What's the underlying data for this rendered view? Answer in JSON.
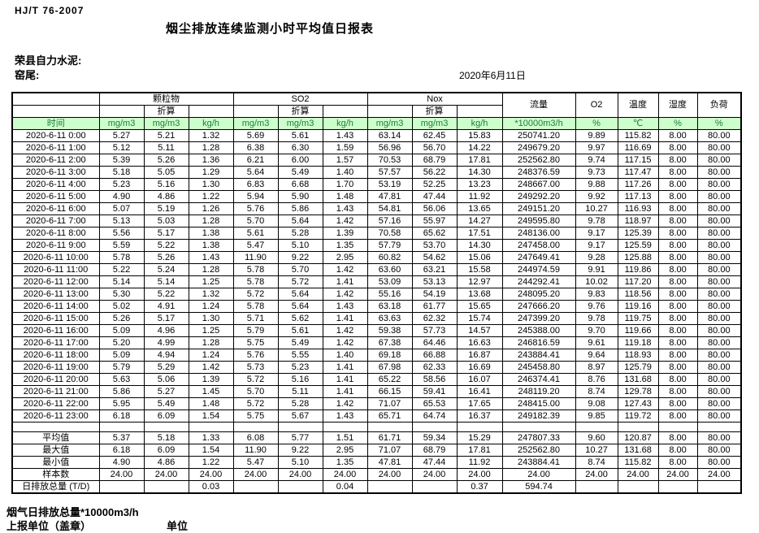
{
  "header": {
    "standard": "HJ/T  76-2007",
    "title": "烟尘排放连续监测小时平均值日报表",
    "company": "荣县自力水泥:",
    "station": "窑尾:",
    "date": "2020年6月11日"
  },
  "colors": {
    "header_bg": "#ccffcc",
    "header_fg": "#227a3c",
    "border": "#000000",
    "text": "#000000"
  },
  "table": {
    "time_label": "时间",
    "groups": [
      "颗粒物",
      "SO2",
      "Nox"
    ],
    "conv_label": "折算",
    "flow_label": "流量",
    "o2_label": "O2",
    "temp_label": "温度",
    "humidity_label": "湿度",
    "load_label": "负荷",
    "units": [
      "时间",
      "mg/m3",
      "mg/m3",
      "kg/h",
      "mg/m3",
      "mg/m3",
      "kg/h",
      "mg/m3",
      "mg/m3",
      "kg/h",
      "*10000m3/h",
      "%",
      "℃",
      "%",
      "%"
    ],
    "rows": [
      {
        "time": "2020-6-11  0:00",
        "values": [
          "5.27",
          "5.21",
          "1.32",
          "5.69",
          "5.61",
          "1.43",
          "63.14",
          "62.45",
          "15.83",
          "250741.20",
          "9.89",
          "115.82",
          "8.00",
          "80.00"
        ]
      },
      {
        "time": "2020-6-11  1:00",
        "values": [
          "5.12",
          "5.11",
          "1.28",
          "6.38",
          "6.30",
          "1.59",
          "56.96",
          "56.70",
          "14.22",
          "249679.20",
          "9.97",
          "116.69",
          "8.00",
          "80.00"
        ]
      },
      {
        "time": "2020-6-11  2:00",
        "values": [
          "5.39",
          "5.26",
          "1.36",
          "6.21",
          "6.00",
          "1.57",
          "70.53",
          "68.79",
          "17.81",
          "252562.80",
          "9.74",
          "117.15",
          "8.00",
          "80.00"
        ]
      },
      {
        "time": "2020-6-11  3:00",
        "values": [
          "5.18",
          "5.05",
          "1.29",
          "5.64",
          "5.49",
          "1.40",
          "57.57",
          "56.22",
          "14.30",
          "248376.59",
          "9.73",
          "117.47",
          "8.00",
          "80.00"
        ]
      },
      {
        "time": "2020-6-11  4:00",
        "values": [
          "5.23",
          "5.16",
          "1.30",
          "6.83",
          "6.68",
          "1.70",
          "53.19",
          "52.25",
          "13.23",
          "248667.00",
          "9.88",
          "117.26",
          "8.00",
          "80.00"
        ]
      },
      {
        "time": "2020-6-11  5:00",
        "values": [
          "4.90",
          "4.86",
          "1.22",
          "5.94",
          "5.90",
          "1.48",
          "47.81",
          "47.44",
          "11.92",
          "249292.20",
          "9.92",
          "117.13",
          "8.00",
          "80.00"
        ]
      },
      {
        "time": "2020-6-11  6:00",
        "values": [
          "5.07",
          "5.19",
          "1.26",
          "5.76",
          "5.86",
          "1.43",
          "54.81",
          "56.06",
          "13.65",
          "249151.20",
          "10.27",
          "116.93",
          "8.00",
          "80.00"
        ]
      },
      {
        "time": "2020-6-11  7:00",
        "values": [
          "5.13",
          "5.03",
          "1.28",
          "5.70",
          "5.64",
          "1.42",
          "57.16",
          "55.97",
          "14.27",
          "249595.80",
          "9.78",
          "118.97",
          "8.00",
          "80.00"
        ]
      },
      {
        "time": "2020-6-11  8:00",
        "values": [
          "5.56",
          "5.17",
          "1.38",
          "5.61",
          "5.28",
          "1.39",
          "70.58",
          "65.62",
          "17.51",
          "248136.00",
          "9.17",
          "125.39",
          "8.00",
          "80.00"
        ]
      },
      {
        "time": "2020-6-11  9:00",
        "values": [
          "5.59",
          "5.22",
          "1.38",
          "5.47",
          "5.10",
          "1.35",
          "57.79",
          "53.70",
          "14.30",
          "247458.00",
          "9.17",
          "125.59",
          "8.00",
          "80.00"
        ]
      },
      {
        "time": "2020-6-11 10:00",
        "values": [
          "5.78",
          "5.26",
          "1.43",
          "11.90",
          "9.22",
          "2.95",
          "60.82",
          "54.62",
          "15.06",
          "247649.41",
          "9.28",
          "125.88",
          "8.00",
          "80.00"
        ]
      },
      {
        "time": "2020-6-11 11:00",
        "values": [
          "5.22",
          "5.24",
          "1.28",
          "5.78",
          "5.70",
          "1.42",
          "63.60",
          "63.21",
          "15.58",
          "244974.59",
          "9.91",
          "119.86",
          "8.00",
          "80.00"
        ]
      },
      {
        "time": "2020-6-11 12:00",
        "values": [
          "5.14",
          "5.14",
          "1.25",
          "5.78",
          "5.72",
          "1.41",
          "53.09",
          "53.13",
          "12.97",
          "244292.41",
          "10.02",
          "117.20",
          "8.00",
          "80.00"
        ]
      },
      {
        "time": "2020-6-11 13:00",
        "values": [
          "5.30",
          "5.22",
          "1.32",
          "5.72",
          "5.64",
          "1.42",
          "55.16",
          "54.19",
          "13.68",
          "248095.20",
          "9.83",
          "118.56",
          "8.00",
          "80.00"
        ]
      },
      {
        "time": "2020-6-11 14:00",
        "values": [
          "5.02",
          "4.91",
          "1.24",
          "5.78",
          "5.64",
          "1.43",
          "63.18",
          "61.77",
          "15.65",
          "247666.20",
          "9.76",
          "119.16",
          "8.00",
          "80.00"
        ]
      },
      {
        "time": "2020-6-11 15:00",
        "values": [
          "5.26",
          "5.17",
          "1.30",
          "5.71",
          "5.62",
          "1.41",
          "63.63",
          "62.32",
          "15.74",
          "247399.20",
          "9.78",
          "119.75",
          "8.00",
          "80.00"
        ]
      },
      {
        "time": "2020-6-11 16:00",
        "values": [
          "5.09",
          "4.96",
          "1.25",
          "5.79",
          "5.61",
          "1.42",
          "59.38",
          "57.73",
          "14.57",
          "245388.00",
          "9.70",
          "119.66",
          "8.00",
          "80.00"
        ]
      },
      {
        "time": "2020-6-11 17:00",
        "values": [
          "5.20",
          "4.99",
          "1.28",
          "5.75",
          "5.49",
          "1.42",
          "67.38",
          "64.46",
          "16.63",
          "246816.59",
          "9.61",
          "119.18",
          "8.00",
          "80.00"
        ]
      },
      {
        "time": "2020-6-11 18:00",
        "values": [
          "5.09",
          "4.94",
          "1.24",
          "5.76",
          "5.55",
          "1.40",
          "69.18",
          "66.88",
          "16.87",
          "243884.41",
          "9.64",
          "118.93",
          "8.00",
          "80.00"
        ]
      },
      {
        "time": "2020-6-11 19:00",
        "values": [
          "5.79",
          "5.29",
          "1.42",
          "5.73",
          "5.23",
          "1.41",
          "67.98",
          "62.33",
          "16.69",
          "245458.80",
          "8.97",
          "125.79",
          "8.00",
          "80.00"
        ]
      },
      {
        "time": "2020-6-11 20:00",
        "values": [
          "5.63",
          "5.06",
          "1.39",
          "5.72",
          "5.16",
          "1.41",
          "65.22",
          "58.56",
          "16.07",
          "246374.41",
          "8.76",
          "131.68",
          "8.00",
          "80.00"
        ]
      },
      {
        "time": "2020-6-11 21:00",
        "values": [
          "5.86",
          "5.27",
          "1.45",
          "5.70",
          "5.11",
          "1.41",
          "66.15",
          "59.41",
          "16.41",
          "248119.20",
          "8.74",
          "129.78",
          "8.00",
          "80.00"
        ]
      },
      {
        "time": "2020-6-11 22:00",
        "values": [
          "5.95",
          "5.49",
          "1.48",
          "5.72",
          "5.28",
          "1.42",
          "71.07",
          "65.53",
          "17.65",
          "248415.00",
          "9.08",
          "127.43",
          "8.00",
          "80.00"
        ]
      },
      {
        "time": "2020-6-11 23:00",
        "values": [
          "6.18",
          "6.09",
          "1.54",
          "5.75",
          "5.67",
          "1.43",
          "65.71",
          "64.74",
          "16.37",
          "249182.39",
          "9.85",
          "119.72",
          "8.00",
          "80.00"
        ]
      }
    ],
    "summary": [
      {
        "label": "平均值",
        "values": [
          "5.37",
          "5.18",
          "1.33",
          "6.08",
          "5.77",
          "1.51",
          "61.71",
          "59.34",
          "15.29",
          "247807.33",
          "9.60",
          "120.87",
          "8.00",
          "80.00"
        ]
      },
      {
        "label": "最大值",
        "values": [
          "6.18",
          "6.09",
          "1.54",
          "11.90",
          "9.22",
          "2.95",
          "71.07",
          "68.79",
          "17.81",
          "252562.80",
          "10.27",
          "131.68",
          "8.00",
          "80.00"
        ]
      },
      {
        "label": "最小值",
        "values": [
          "4.90",
          "4.86",
          "1.22",
          "5.47",
          "5.10",
          "1.35",
          "47.81",
          "47.44",
          "11.92",
          "243884.41",
          "8.74",
          "115.82",
          "8.00",
          "80.00"
        ]
      },
      {
        "label": "样本数",
        "values": [
          "24.00",
          "24.00",
          "24.00",
          "24.00",
          "24.00",
          "24.00",
          "24.00",
          "24.00",
          "24.00",
          "24.00",
          "24.00",
          "24.00",
          "24.00",
          "24.00"
        ]
      }
    ],
    "total_row": {
      "label": "日排放总量 (T/D)",
      "values": [
        "",
        "",
        "0.03",
        "",
        "",
        "0.04",
        "",
        "",
        "0.37",
        "594.74",
        "",
        "",
        "",
        ""
      ]
    }
  },
  "footer": {
    "note": "烟气日排放总量*10000m3/h",
    "report_unit": "上报单位（盖章）",
    "unit": "单位"
  }
}
